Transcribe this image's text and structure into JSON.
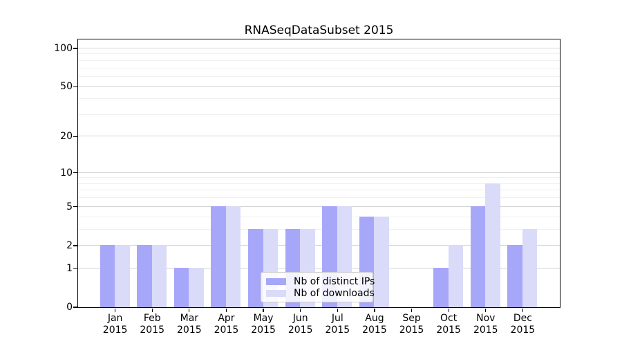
{
  "chart_data": {
    "type": "bar",
    "title": "RNASeqDataSubset 2015",
    "categories": [
      "Jan",
      "Feb",
      "Mar",
      "Apr",
      "May",
      "Jun",
      "Jul",
      "Aug",
      "Sep",
      "Oct",
      "Nov",
      "Dec"
    ],
    "category_year": "2015",
    "series": [
      {
        "name": "Nb of distinct IPs",
        "color": "#a7a7fa",
        "values": [
          2,
          2,
          1,
          5,
          3,
          3,
          5,
          4,
          0,
          1,
          5,
          2
        ]
      },
      {
        "name": "Nb of downloads",
        "color": "#dadaf9",
        "values": [
          2,
          2,
          1,
          5,
          3,
          3,
          5,
          4,
          0,
          2,
          8,
          3
        ]
      }
    ],
    "xlabel": "",
    "ylabel": "",
    "yscale": "log10(value+1)",
    "ylim": [
      0,
      117.5
    ],
    "yticks": [
      0,
      1,
      2,
      5,
      10,
      20,
      50,
      100
    ],
    "yticks_minor": [
      3,
      4,
      6,
      7,
      8,
      9,
      30,
      40,
      60,
      70,
      80,
      90
    ],
    "grid": "horizontal",
    "legend_position": "inside lower center",
    "colors": {
      "grid_major": "#d4d4d4",
      "grid_minor": "#f0f0f1",
      "axis": "#000000",
      "background": "#ffffff"
    }
  }
}
